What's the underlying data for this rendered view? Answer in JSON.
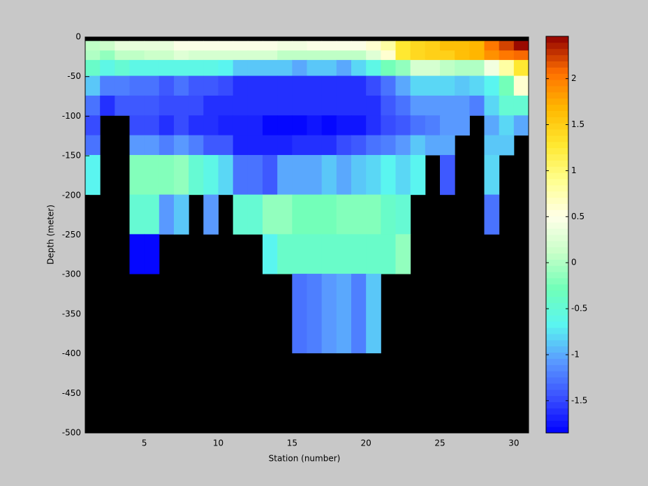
{
  "chart_data": {
    "type": "heatmap",
    "x_label": "Station (number)",
    "y_label": "Depth (meter)",
    "x": [
      1,
      2,
      3,
      4,
      5,
      6,
      7,
      8,
      9,
      10,
      11,
      12,
      13,
      14,
      15,
      16,
      17,
      18,
      19,
      20,
      21,
      22,
      23,
      24,
      25,
      26,
      27,
      28,
      29,
      30,
      31
    ],
    "y": [
      -5,
      -17,
      -29,
      -49,
      -74,
      -99,
      -124,
      -149,
      -199,
      -249,
      -299,
      -399
    ],
    "values": [
      [
        0.1,
        0.15,
        0.35,
        0.35,
        0.35,
        0.35,
        0.45,
        0.45,
        0.45,
        0.5,
        0.5,
        0.5,
        0.45,
        0.4,
        0.4,
        0.45,
        0.45,
        0.5,
        0.5,
        0.6,
        0.8,
        1.3,
        1.4,
        1.5,
        1.6,
        1.6,
        1.7,
        2.0,
        2.2,
        2.4
      ],
      [
        0.0,
        -0.1,
        0.05,
        0.1,
        0.15,
        0.15,
        0.25,
        0.2,
        0.2,
        0.2,
        0.2,
        0.2,
        0.2,
        0.1,
        0.1,
        0.1,
        0.1,
        0.1,
        0.1,
        0.3,
        0.6,
        1.3,
        1.4,
        1.5,
        1.5,
        1.6,
        1.7,
        1.9,
        2.0,
        2.1
      ],
      [
        -0.4,
        -0.6,
        -0.5,
        -0.6,
        -0.6,
        -0.6,
        -0.6,
        -0.6,
        -0.6,
        -0.7,
        -0.9,
        -0.9,
        -0.9,
        -0.9,
        -1.0,
        -0.9,
        -0.9,
        -1.0,
        -0.8,
        -0.6,
        -0.3,
        -0.1,
        0.2,
        0.2,
        0.1,
        0.0,
        0.0,
        0.4,
        0.8,
        1.3
      ],
      [
        -0.9,
        -1.2,
        -1.2,
        -1.3,
        -1.3,
        -1.4,
        -1.3,
        -1.4,
        -1.4,
        -1.5,
        -1.6,
        -1.6,
        -1.6,
        -1.6,
        -1.6,
        -1.6,
        -1.6,
        -1.6,
        -1.6,
        -1.5,
        -1.3,
        -1.0,
        -0.8,
        -0.8,
        -0.8,
        -0.9,
        -0.8,
        -0.7,
        -0.3,
        0.6
      ],
      [
        -1.3,
        -1.6,
        -1.4,
        -1.4,
        -1.4,
        -1.5,
        -1.5,
        -1.5,
        -1.6,
        -1.6,
        -1.6,
        -1.6,
        -1.6,
        -1.6,
        -1.6,
        -1.6,
        -1.6,
        -1.6,
        -1.6,
        -1.6,
        -1.4,
        -1.3,
        -1.1,
        -1.1,
        -1.1,
        -1.1,
        -1.2,
        -0.8,
        -0.5,
        -0.5
      ],
      [
        -1.5,
        null,
        null,
        -1.5,
        -1.5,
        -1.6,
        -1.5,
        -1.6,
        -1.6,
        -1.7,
        -1.7,
        -1.7,
        -1.8,
        -1.8,
        -1.8,
        -1.75,
        -1.85,
        -1.75,
        -1.75,
        -1.6,
        -1.5,
        -1.4,
        -1.3,
        -1.2,
        -1.1,
        -1.1,
        null,
        -1.0,
        -0.8,
        -1.0
      ],
      [
        -1.3,
        null,
        null,
        -1.1,
        -1.1,
        -1.2,
        -1.1,
        -1.2,
        -1.4,
        -1.4,
        -1.7,
        -1.7,
        -1.7,
        -1.7,
        -1.6,
        -1.6,
        -1.6,
        -1.5,
        -1.4,
        -1.3,
        -1.2,
        -1.1,
        -0.9,
        -1.0,
        -1.0,
        null,
        null,
        -0.9,
        -0.9,
        null
      ],
      [
        -0.7,
        null,
        null,
        -0.2,
        -0.2,
        -0.2,
        -0.1,
        -0.5,
        -0.6,
        -0.8,
        -1.3,
        -1.3,
        -1.4,
        -1.0,
        -1.0,
        -1.0,
        -0.9,
        -1.0,
        -0.9,
        -0.8,
        -0.7,
        -0.8,
        -0.7,
        null,
        -1.4,
        null,
        null,
        -0.8,
        null,
        null
      ],
      [
        null,
        null,
        null,
        -0.5,
        -0.5,
        -1.1,
        -0.9,
        null,
        -1.1,
        null,
        -0.5,
        -0.5,
        -0.1,
        -0.1,
        -0.3,
        -0.3,
        -0.3,
        -0.2,
        -0.2,
        -0.2,
        -0.4,
        -0.5,
        null,
        null,
        null,
        null,
        null,
        -1.3,
        null,
        null
      ],
      [
        null,
        null,
        null,
        -1.85,
        -1.85,
        null,
        null,
        null,
        null,
        null,
        null,
        null,
        -0.7,
        -0.4,
        -0.4,
        -0.4,
        -0.4,
        -0.4,
        -0.4,
        -0.4,
        -0.4,
        -0.1,
        null,
        null,
        null,
        null,
        null,
        null,
        null,
        null
      ],
      [
        null,
        null,
        null,
        null,
        null,
        null,
        null,
        null,
        null,
        null,
        null,
        null,
        null,
        null,
        -1.3,
        -1.2,
        -1.1,
        -1.0,
        -1.2,
        -0.9,
        null,
        null,
        null,
        null,
        null,
        null,
        null,
        null,
        null,
        null
      ]
    ],
    "xlim": [
      1,
      31
    ],
    "ylim": [
      -500,
      0
    ],
    "xticks": [
      5,
      10,
      15,
      20,
      25,
      30
    ],
    "yticks": [
      0,
      -50,
      -100,
      -150,
      -200,
      -250,
      -300,
      -350,
      -400,
      -450,
      -500
    ],
    "clim": [
      -1.85,
      2.46
    ],
    "cticks": [
      -1.5,
      -1,
      -0.5,
      0,
      0.5,
      1,
      1.5,
      2
    ],
    "background": "#000000",
    "colormap": [
      "#0000ff",
      "#3a50ff",
      "#5a9bff",
      "#5af5f0",
      "#70ffb8",
      "#c8ffc8",
      "#ffffe8",
      "#ffff90",
      "#ffe830",
      "#ffb800",
      "#ff7000",
      "#900000"
    ]
  }
}
